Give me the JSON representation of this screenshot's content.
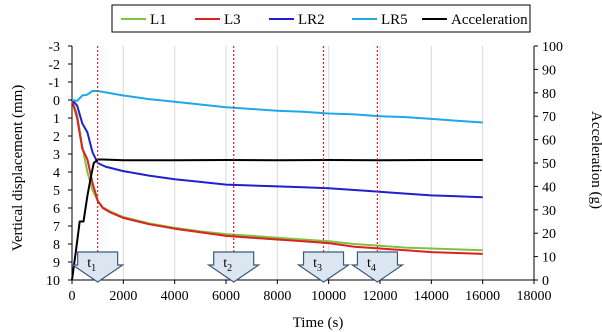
{
  "chart_data": {
    "type": "line",
    "xlabel": "Time (s)",
    "ylabel": "Vertical displacement (mm)",
    "y2label": "Acceleration (g)",
    "xlim": [
      0,
      18000
    ],
    "ylim": [
      10,
      -3
    ],
    "y2lim": [
      0,
      100
    ],
    "x_ticks": [
      "0",
      "2000",
      "4000",
      "6000",
      "8000",
      "10000",
      "12000",
      "14000",
      "16000",
      "18000"
    ],
    "y_ticks": [
      "-3",
      "-2",
      "-1",
      "0",
      "1",
      "2",
      "3",
      "4",
      "5",
      "6",
      "7",
      "8",
      "9",
      "10"
    ],
    "y2_ticks": [
      "0",
      "10",
      "20",
      "30",
      "40",
      "50",
      "60",
      "70",
      "80",
      "90",
      "100"
    ],
    "grid": "vertical",
    "legend_position": "top",
    "series": [
      {
        "name": "L1",
        "color": "#7fc241",
        "axis": "left",
        "x": [
          0,
          200,
          400,
          600,
          800,
          1000,
          1200,
          1500,
          2000,
          3000,
          4000,
          5000,
          6000,
          7000,
          8000,
          9000,
          10000,
          11000,
          12000,
          13000,
          14000,
          15000,
          16000
        ],
        "y": [
          0,
          0.8,
          2.6,
          4.0,
          5.0,
          5.6,
          5.95,
          6.2,
          6.5,
          6.85,
          7.1,
          7.3,
          7.45,
          7.55,
          7.65,
          7.75,
          7.85,
          8.0,
          8.1,
          8.2,
          8.25,
          8.3,
          8.35
        ]
      },
      {
        "name": "L3",
        "color": "#e02020",
        "axis": "left",
        "x": [
          0,
          200,
          400,
          600,
          800,
          1000,
          1200,
          1500,
          2000,
          3000,
          4000,
          5000,
          6000,
          7000,
          8000,
          9000,
          10000,
          11000,
          12000,
          13000,
          14000,
          15000,
          16000
        ],
        "y": [
          0,
          1.0,
          2.7,
          3.3,
          4.6,
          5.6,
          6.0,
          6.25,
          6.55,
          6.9,
          7.15,
          7.35,
          7.55,
          7.65,
          7.75,
          7.85,
          7.95,
          8.15,
          8.25,
          8.35,
          8.45,
          8.5,
          8.55
        ]
      },
      {
        "name": "LR2",
        "color": "#2020d0",
        "axis": "left",
        "x": [
          0,
          200,
          400,
          600,
          800,
          1000,
          1300,
          2000,
          3000,
          4000,
          5000,
          6000,
          7000,
          8000,
          9000,
          10000,
          11000,
          12000,
          13000,
          14000,
          15000,
          16000
        ],
        "y": [
          0,
          0.3,
          1.3,
          1.8,
          2.9,
          3.5,
          3.7,
          3.95,
          4.2,
          4.4,
          4.55,
          4.7,
          4.75,
          4.8,
          4.85,
          4.9,
          5.0,
          5.1,
          5.2,
          5.3,
          5.35,
          5.4
        ]
      },
      {
        "name": "LR5",
        "color": "#1ea8e8",
        "axis": "left",
        "x": [
          0,
          200,
          400,
          600,
          800,
          1000,
          1200,
          2000,
          3000,
          4000,
          5000,
          6000,
          7000,
          8000,
          9000,
          10000,
          11000,
          12000,
          13000,
          14000,
          15000,
          16000
        ],
        "y": [
          0,
          0.05,
          -0.25,
          -0.3,
          -0.5,
          -0.5,
          -0.45,
          -0.25,
          -0.05,
          0.1,
          0.25,
          0.4,
          0.5,
          0.6,
          0.65,
          0.75,
          0.8,
          0.9,
          0.95,
          1.05,
          1.15,
          1.25
        ]
      },
      {
        "name": "Acceleration",
        "color": "#000000",
        "axis": "right",
        "x": [
          0,
          150,
          300,
          450,
          600,
          750,
          850,
          1000,
          1200,
          2000,
          4000,
          6000,
          8000,
          10000,
          12000,
          14000,
          16000
        ],
        "y": [
          0,
          12,
          25,
          25,
          36,
          45,
          50,
          51.5,
          51.5,
          51.2,
          51.2,
          51.3,
          51.2,
          51.3,
          51.2,
          51.3,
          51.3
        ]
      }
    ],
    "markers": [
      {
        "label": "t",
        "sub": "1",
        "x": 1000
      },
      {
        "label": "t",
        "sub": "2",
        "x": 6300
      },
      {
        "label": "t",
        "sub": "3",
        "x": 9800
      },
      {
        "label": "t",
        "sub": "4",
        "x": 11900
      }
    ]
  }
}
